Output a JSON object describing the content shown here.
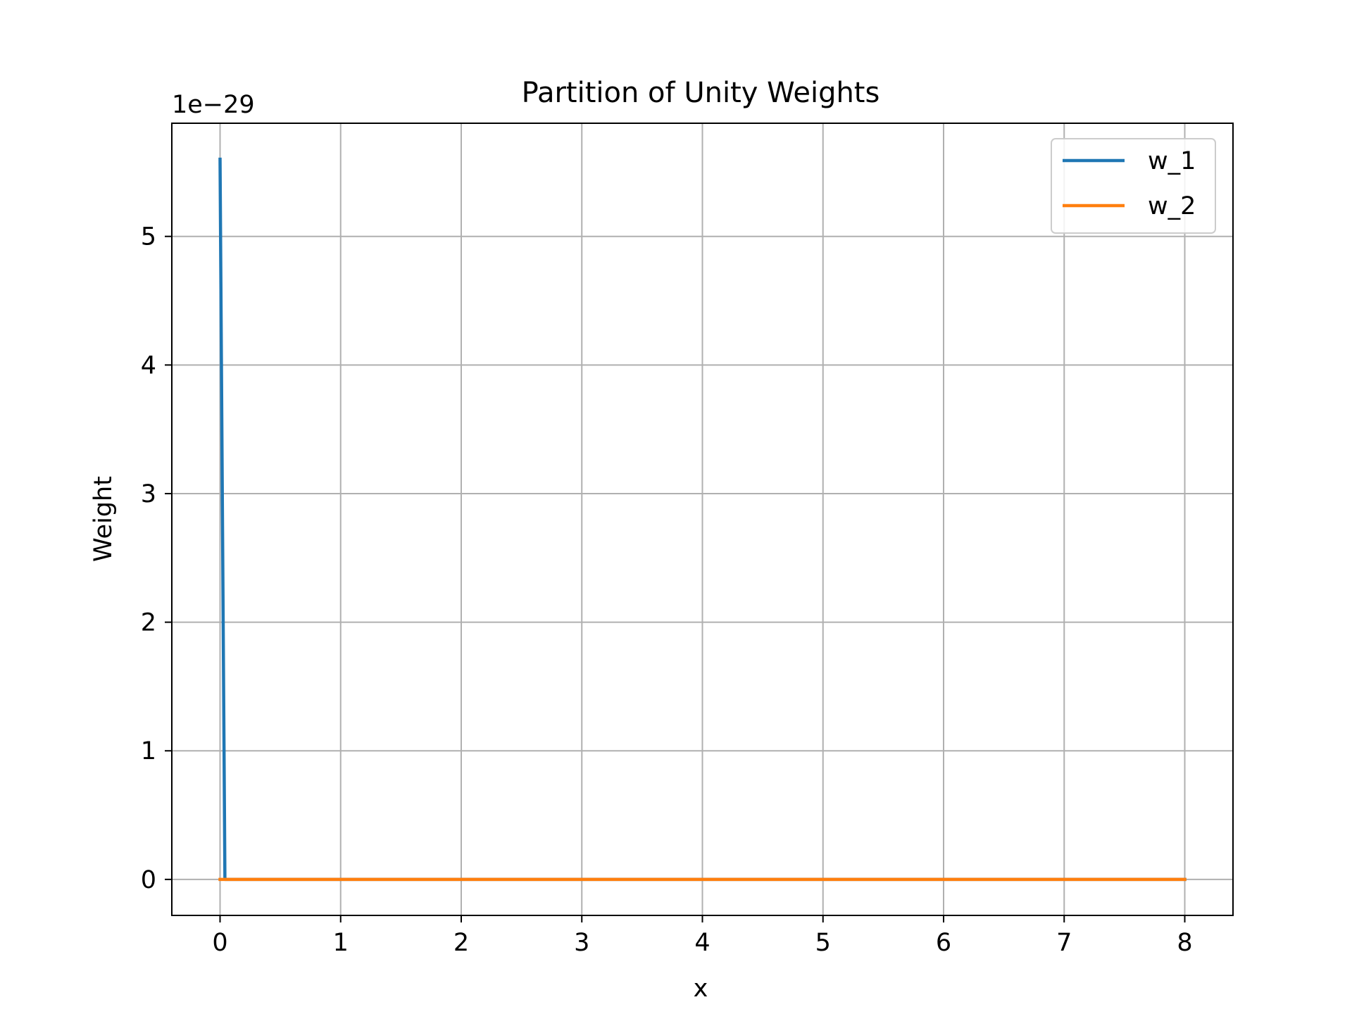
{
  "chart_data": {
    "type": "line",
    "title": "Partition of Unity Weights",
    "xlabel": "x",
    "ylabel": "Weight",
    "y_offset_label": "1e−29",
    "xlim": [
      -0.4,
      8.4
    ],
    "ylim": [
      -0.28,
      5.88
    ],
    "x_ticks": [
      0,
      1,
      2,
      3,
      4,
      5,
      6,
      7,
      8
    ],
    "y_ticks": [
      0,
      1,
      2,
      3,
      4,
      5
    ],
    "grid": true,
    "legend_position": "upper right",
    "series": [
      {
        "name": "w_1",
        "color": "#1f77b4",
        "x": [
          0,
          0.04,
          8
        ],
        "y": [
          5.6,
          0,
          0
        ]
      },
      {
        "name": "w_2",
        "color": "#ff7f0e",
        "x": [
          0,
          8
        ],
        "y": [
          0,
          0
        ]
      }
    ]
  }
}
